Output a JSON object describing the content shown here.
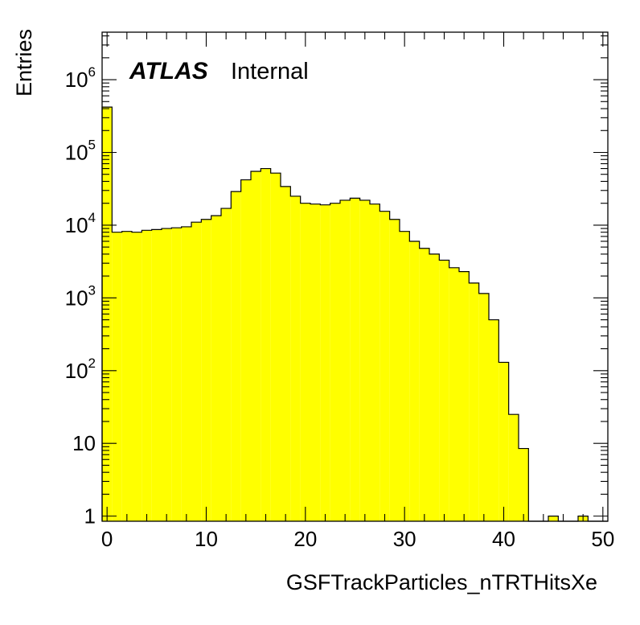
{
  "chart_data": {
    "type": "bar",
    "histogram": true,
    "experiment_label": "ATLAS",
    "status_label": "Internal",
    "xlabel": "GSFTrackParticles_nTRTHitsXe",
    "ylabel": "Entries",
    "xlim": [
      -0.5,
      50.5
    ],
    "ylim": [
      0.85,
      4500000
    ],
    "yscale": "log",
    "bin_width": 1,
    "x_ticks": [
      {
        "value": 0,
        "label": "0"
      },
      {
        "value": 10,
        "label": "10"
      },
      {
        "value": 20,
        "label": "20"
      },
      {
        "value": 30,
        "label": "30"
      },
      {
        "value": 40,
        "label": "40"
      },
      {
        "value": 50,
        "label": "50"
      }
    ],
    "y_ticks": [
      {
        "value": 1,
        "base": "1",
        "exp": ""
      },
      {
        "value": 10,
        "base": "10",
        "exp": ""
      },
      {
        "value": 100,
        "base": "10",
        "exp": "2"
      },
      {
        "value": 1000,
        "base": "10",
        "exp": "3"
      },
      {
        "value": 10000,
        "base": "10",
        "exp": "4"
      },
      {
        "value": 100000,
        "base": "10",
        "exp": "5"
      },
      {
        "value": 1000000,
        "base": "10",
        "exp": "6"
      }
    ],
    "bin_low_edges": [
      -0.5,
      0.5,
      1.5,
      2.5,
      3.5,
      4.5,
      5.5,
      6.5,
      7.5,
      8.5,
      9.5,
      10.5,
      11.5,
      12.5,
      13.5,
      14.5,
      15.5,
      16.5,
      17.5,
      18.5,
      19.5,
      20.5,
      21.5,
      22.5,
      23.5,
      24.5,
      25.5,
      26.5,
      27.5,
      28.5,
      29.5,
      30.5,
      31.5,
      32.5,
      33.5,
      34.5,
      35.5,
      36.5,
      37.5,
      38.5,
      39.5,
      40.5,
      41.5,
      42.5,
      43.5,
      44.5,
      45.5,
      46.5,
      47.5,
      48.5,
      49.5
    ],
    "values": [
      420000,
      8000,
      8200,
      8000,
      8500,
      8700,
      9000,
      9200,
      9500,
      11000,
      12000,
      13500,
      17000,
      29000,
      42000,
      55000,
      60000,
      52000,
      34000,
      25000,
      20000,
      19500,
      19000,
      20000,
      22000,
      23500,
      22000,
      19500,
      15500,
      12000,
      8200,
      6000,
      4800,
      4000,
      3300,
      2600,
      2300,
      1600,
      1150,
      500,
      130,
      25,
      8.5,
      0,
      0,
      1,
      0,
      0,
      1,
      0,
      0
    ],
    "colors": {
      "fill": "#ffff00",
      "line": "#000000",
      "frame": "#000000",
      "background": "#ffffff"
    },
    "grid": false,
    "legend": "none"
  }
}
